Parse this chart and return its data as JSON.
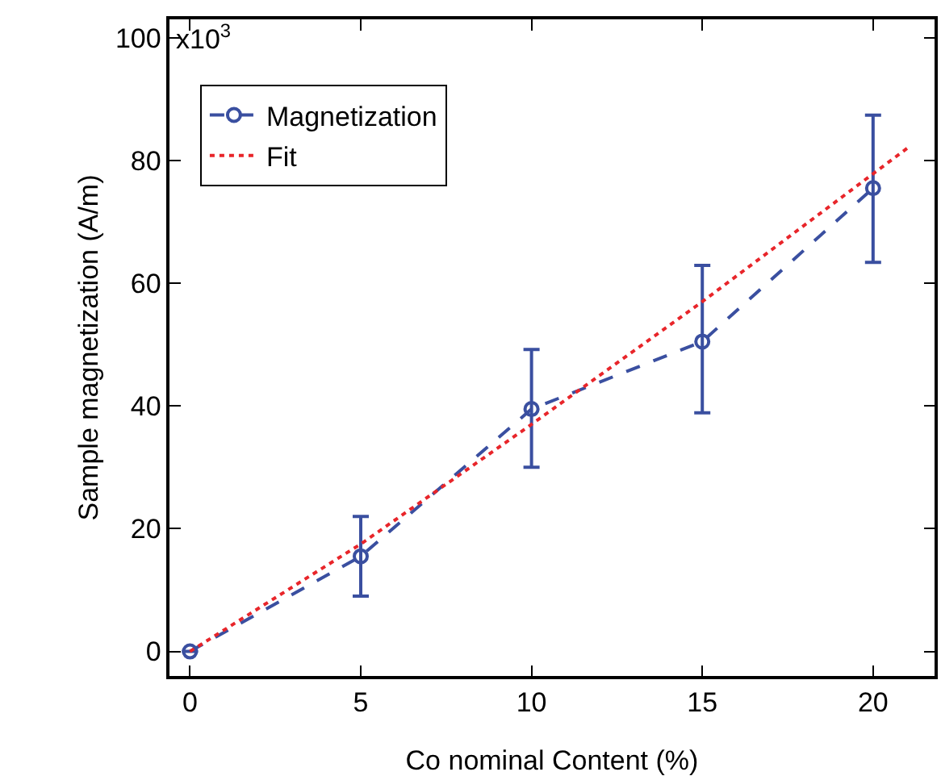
{
  "chart_data": {
    "type": "line",
    "xlabel": "Co nominal Content (%)",
    "ylabel": "Sample magnetization (A/m)",
    "x": [
      0,
      5,
      10,
      15,
      20
    ],
    "series": [
      {
        "name": "Magnetization",
        "color": "#3a4fa0",
        "values": [
          0,
          15.5,
          39.5,
          50.5,
          75.5
        ],
        "errors": [
          null,
          [
            9,
            22
          ],
          [
            30,
            49.2
          ],
          [
            38.9,
            62.9
          ],
          [
            63.4,
            87.4
          ]
        ],
        "marker": "circle",
        "line_style": "dashed"
      },
      {
        "name": "Fit",
        "color": "#e8252a",
        "x": [
          0,
          5,
          10,
          15,
          21
        ],
        "values": [
          0,
          17.5,
          37,
          57,
          82
        ],
        "marker": "none",
        "line_style": "dotted"
      }
    ],
    "xlim": [
      -0.6,
      21.8
    ],
    "ylim": [
      -4,
      103
    ],
    "xticks": [
      0,
      5,
      10,
      15,
      20
    ],
    "yticks": [
      0,
      20,
      40,
      60,
      80,
      100
    ],
    "annotations": [
      "x10$^{3}$"
    ],
    "grid": false,
    "legend": "top left"
  }
}
